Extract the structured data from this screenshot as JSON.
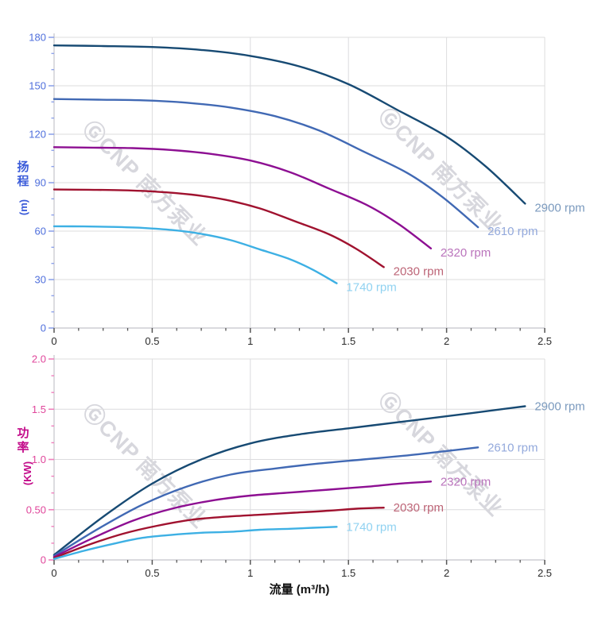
{
  "watermark": {
    "text": "ⒼCNP 南方泵业"
  },
  "chart_data": [
    {
      "type": "line",
      "title": "",
      "xlabel": "流量 (m³/h)",
      "ylabel": "扬程 (m)",
      "ylabel_cn": "扬程",
      "ylabel_unit": "(m)",
      "xlim": [
        0,
        2.5
      ],
      "ylim": [
        0,
        180
      ],
      "grid": true,
      "legend_position": "curve-end-labels",
      "x_major_ticks": [
        0,
        0.5,
        1,
        1.5,
        2,
        2.5
      ],
      "x_tick_labels": [
        "0",
        "0.5",
        "1",
        "1.5",
        "2",
        "2.5"
      ],
      "x_minor_step": 0.125,
      "y_major_ticks": [
        0,
        30,
        60,
        90,
        120,
        150,
        180
      ],
      "y_tick_labels": [
        "0",
        "30",
        "60",
        "90",
        "120",
        "150",
        "180"
      ],
      "y_minor_step": 10,
      "y_label_color": "#4f6fdc",
      "y_tick_color": "#8fa3ea",
      "x_label_color": "#2a2a2a",
      "x_tick_color": "#555555",
      "series": [
        {
          "name": "2900 rpm",
          "color": "#174a73",
          "label_color": "#7b9abe",
          "x": [
            0,
            0.25,
            0.5,
            0.75,
            1.0,
            1.25,
            1.5,
            1.75,
            2.0,
            2.2,
            2.4
          ],
          "y": [
            175,
            174.6,
            174,
            172.2,
            168.5,
            162,
            151,
            135,
            118.5,
            100,
            77
          ]
        },
        {
          "name": "2610 rpm",
          "color": "#4169b4",
          "label_color": "#93a9dc",
          "x": [
            0,
            0.225,
            0.45,
            0.675,
            0.9,
            1.125,
            1.35,
            1.575,
            1.8,
            1.98,
            2.16
          ],
          "y": [
            141.8,
            141.4,
            141,
            139.5,
            136.5,
            131.2,
            122.3,
            109.4,
            96,
            81,
            62.4
          ]
        },
        {
          "name": "2320 rpm",
          "color": "#8d0f92",
          "label_color": "#ba74bc",
          "x": [
            0,
            0.2,
            0.4,
            0.6,
            0.8,
            1.0,
            1.2,
            1.4,
            1.6,
            1.76,
            1.92
          ],
          "y": [
            112,
            111.7,
            111.4,
            110.2,
            107.8,
            103.7,
            96.6,
            86.4,
            75.8,
            64,
            49.3
          ]
        },
        {
          "name": "2030 rpm",
          "color": "#a0122f",
          "label_color": "#bd6577",
          "x": [
            0,
            0.175,
            0.35,
            0.525,
            0.7,
            0.875,
            1.05,
            1.225,
            1.4,
            1.54,
            1.68
          ],
          "y": [
            85.8,
            85.6,
            85.3,
            84.4,
            82.6,
            79.4,
            74,
            66.2,
            58.1,
            49,
            37.7
          ]
        },
        {
          "name": "1740 rpm",
          "color": "#3db0e4",
          "label_color": "#90d2f1",
          "x": [
            0,
            0.15,
            0.3,
            0.45,
            0.6,
            0.75,
            0.9,
            1.05,
            1.2,
            1.32,
            1.44
          ],
          "y": [
            63,
            62.9,
            62.6,
            62,
            60.7,
            58.3,
            54.4,
            48.6,
            42.7,
            36,
            27.7
          ]
        }
      ]
    },
    {
      "type": "line",
      "title": "",
      "xlabel": "流量 (m³/h)",
      "ylabel": "功率 (KW)",
      "ylabel_cn": "功率",
      "ylabel_unit": "(KW)",
      "xlim": [
        0,
        2.5
      ],
      "ylim": [
        0,
        2.0
      ],
      "grid": true,
      "legend_position": "curve-end-labels",
      "x_major_ticks": [
        0,
        0.5,
        1,
        1.5,
        2,
        2.5
      ],
      "x_tick_labels": [
        "0",
        "0.5",
        "1",
        "1.5",
        "2",
        "2.5"
      ],
      "x_minor_step": 0.125,
      "y_major_ticks": [
        0,
        0.5,
        1.0,
        1.5,
        2.0
      ],
      "y_tick_labels": [
        "0",
        "0.50",
        "1.0",
        "1.5",
        "2.0"
      ],
      "y_minor_step": 0.1666667,
      "y_label_color": "#e0469b",
      "y_tick_color": "#f080bd",
      "x_label_color": "#2a2a2a",
      "x_tick_color": "#555555",
      "series": [
        {
          "name": "2900 rpm",
          "color": "#174a73",
          "label_color": "#7b9abe",
          "x": [
            0,
            0.25,
            0.5,
            0.75,
            1.0,
            1.25,
            1.5,
            1.75,
            2.0,
            2.2,
            2.4
          ],
          "y": [
            0.05,
            0.43,
            0.76,
            1.0,
            1.16,
            1.25,
            1.31,
            1.37,
            1.43,
            1.48,
            1.53
          ]
        },
        {
          "name": "2610 rpm",
          "color": "#4169b4",
          "label_color": "#93a9dc",
          "x": [
            0,
            0.225,
            0.45,
            0.675,
            0.9,
            1.125,
            1.35,
            1.575,
            1.8,
            1.98,
            2.16
          ],
          "y": [
            0.04,
            0.31,
            0.55,
            0.73,
            0.85,
            0.91,
            0.96,
            1.0,
            1.04,
            1.08,
            1.12
          ]
        },
        {
          "name": "2320 rpm",
          "color": "#8d0f92",
          "label_color": "#ba74bc",
          "x": [
            0,
            0.2,
            0.4,
            0.6,
            0.8,
            1.0,
            1.2,
            1.4,
            1.6,
            1.76,
            1.92
          ],
          "y": [
            0.03,
            0.22,
            0.39,
            0.51,
            0.59,
            0.64,
            0.67,
            0.7,
            0.73,
            0.76,
            0.78
          ]
        },
        {
          "name": "2030 rpm",
          "color": "#a0122f",
          "label_color": "#bd6577",
          "x": [
            0,
            0.175,
            0.35,
            0.525,
            0.7,
            0.875,
            1.05,
            1.225,
            1.4,
            1.54,
            1.68
          ],
          "y": [
            0.02,
            0.15,
            0.26,
            0.34,
            0.4,
            0.43,
            0.45,
            0.47,
            0.49,
            0.51,
            0.52
          ]
        },
        {
          "name": "1740 rpm",
          "color": "#3db0e4",
          "label_color": "#90d2f1",
          "x": [
            0,
            0.15,
            0.3,
            0.45,
            0.6,
            0.75,
            0.9,
            1.05,
            1.2,
            1.32,
            1.44
          ],
          "y": [
            0.01,
            0.09,
            0.16,
            0.22,
            0.25,
            0.27,
            0.28,
            0.3,
            0.31,
            0.32,
            0.33
          ]
        }
      ]
    }
  ]
}
